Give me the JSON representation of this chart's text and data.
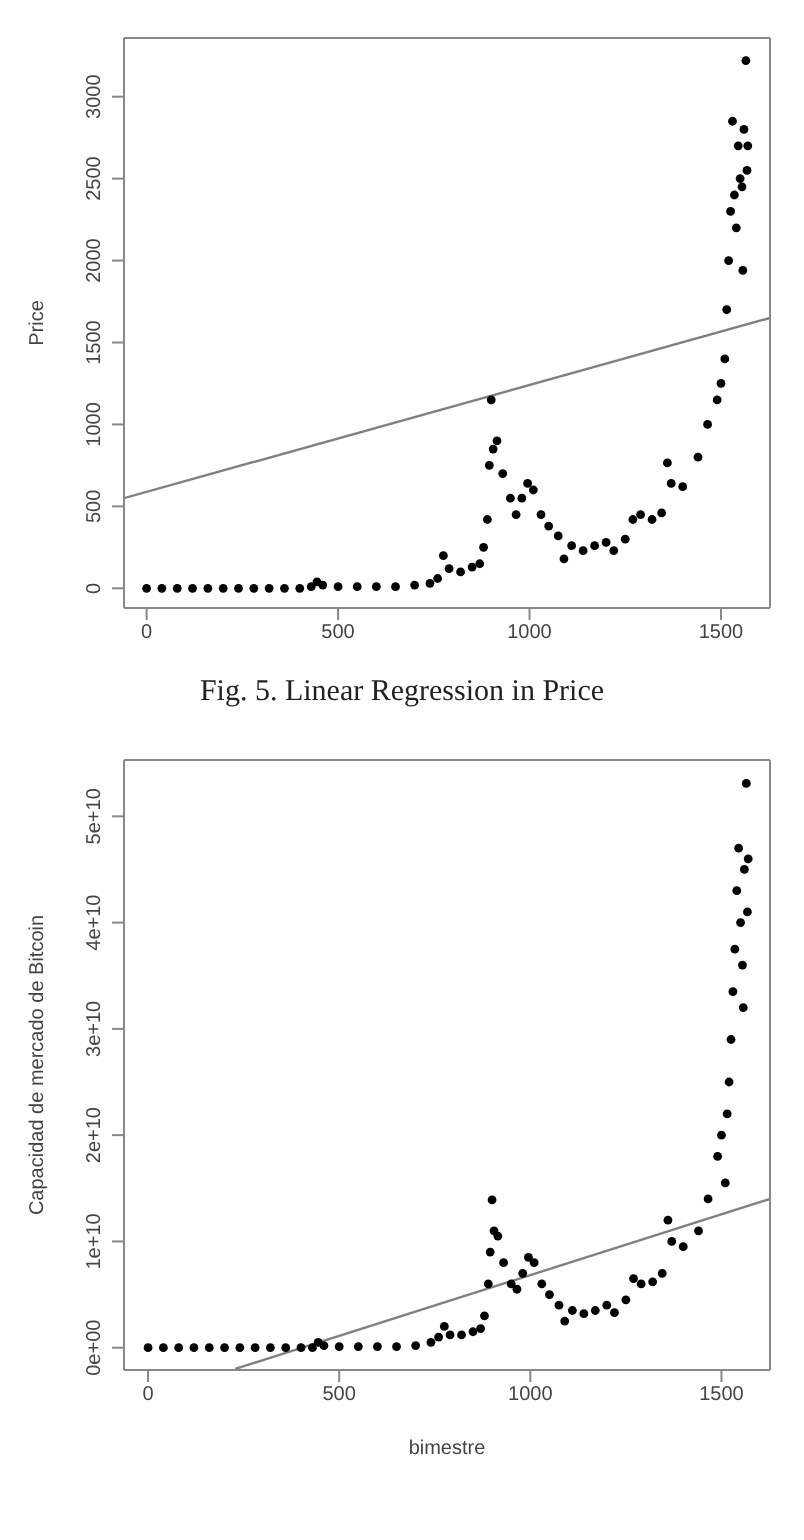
{
  "chart_data": [
    {
      "type": "scatter",
      "ylabel": "Price",
      "annotations": [
        "Fig. 5. Linear Regression in Price"
      ],
      "xlim": [
        -59,
        1628
      ],
      "xticks": [
        0,
        500,
        1000,
        1500
      ],
      "ylim": [
        -120,
        3358
      ],
      "yticks": [
        0,
        500,
        1000,
        1500,
        2000,
        2500,
        3000
      ],
      "series": [
        {
          "marker": "circle",
          "color": "#000000",
          "x": [
            0,
            40,
            80,
            120,
            160,
            200,
            240,
            280,
            320,
            360,
            400,
            430,
            445,
            460,
            500,
            550,
            600,
            650,
            700,
            740,
            760,
            775,
            790,
            820,
            850,
            870,
            880,
            890,
            895,
            900,
            905,
            915,
            930,
            950,
            965,
            980,
            995,
            1010,
            1030,
            1050,
            1075,
            1090,
            1110,
            1140,
            1170,
            1200,
            1220,
            1250,
            1270,
            1290,
            1320,
            1345,
            1360,
            1370,
            1400,
            1440,
            1465,
            1490,
            1500,
            1510,
            1515,
            1520,
            1525,
            1530,
            1535,
            1540,
            1545,
            1550,
            1555,
            1557,
            1560,
            1565,
            1568,
            1570
          ],
          "values": [
            0,
            0,
            0,
            0,
            0,
            0,
            0,
            0,
            0,
            0,
            0,
            10,
            40,
            20,
            10,
            10,
            10,
            10,
            20,
            30,
            60,
            200,
            120,
            100,
            130,
            150,
            250,
            420,
            750,
            1150,
            850,
            900,
            700,
            550,
            450,
            550,
            640,
            600,
            450,
            380,
            320,
            180,
            260,
            230,
            260,
            280,
            230,
            300,
            420,
            450,
            420,
            460,
            765,
            640,
            620,
            800,
            1000,
            1150,
            1250,
            1400,
            1700,
            2000,
            2300,
            2850,
            2400,
            2200,
            2700,
            2500,
            2450,
            1940,
            2800,
            3220,
            2550,
            2700
          ]
        },
        {
          "type": "line",
          "marker": "none",
          "color": "#808080",
          "x": [
            -59,
            1628
          ],
          "values": [
            550,
            1650
          ]
        }
      ]
    },
    {
      "type": "scatter",
      "xlabel": "bimestre",
      "ylabel": "Capacidad de mercado de Bitcoin",
      "xlim": [
        -63,
        1627
      ],
      "xticks": [
        0,
        500,
        1000,
        1500
      ],
      "ylim": [
        -2100000000.0,
        55300000000.0
      ],
      "yticks": [
        {
          "value": 0,
          "label": "0e+00"
        },
        {
          "value": 10000000000.0,
          "label": "1e+10"
        },
        {
          "value": 20000000000.0,
          "label": "2e+10"
        },
        {
          "value": 30000000000.0,
          "label": "3e+10"
        },
        {
          "value": 40000000000.0,
          "label": "4e+10"
        },
        {
          "value": 50000000000.0,
          "label": "5e+10"
        }
      ],
      "series": [
        {
          "marker": "circle",
          "color": "#000000",
          "x": [
            0,
            40,
            80,
            120,
            160,
            200,
            240,
            280,
            320,
            360,
            400,
            430,
            445,
            460,
            500,
            550,
            600,
            650,
            700,
            740,
            760,
            775,
            790,
            820,
            850,
            870,
            880,
            890,
            895,
            900,
            905,
            915,
            930,
            950,
            965,
            980,
            995,
            1010,
            1030,
            1050,
            1075,
            1090,
            1110,
            1140,
            1170,
            1200,
            1220,
            1250,
            1270,
            1290,
            1320,
            1345,
            1360,
            1370,
            1400,
            1440,
            1465,
            1490,
            1500,
            1510,
            1515,
            1520,
            1525,
            1530,
            1535,
            1540,
            1545,
            1550,
            1555,
            1557,
            1560,
            1565,
            1568,
            1570
          ],
          "values": [
            0,
            0,
            0,
            0,
            0,
            0,
            0,
            0,
            0,
            0,
            0,
            0,
            500000000.0,
            200000000.0,
            100000000.0,
            100000000.0,
            100000000.0,
            100000000.0,
            200000000.0,
            500000000.0,
            1000000000.0,
            2000000000.0,
            1200000000.0,
            1200000000.0,
            1500000000.0,
            1800000000.0,
            3000000000.0,
            6000000000.0,
            9000000000.0,
            13900000000.0,
            11000000000.0,
            10500000000.0,
            8000000000.0,
            6000000000.0,
            5500000000.0,
            7000000000.0,
            8500000000.0,
            8000000000.0,
            6000000000.0,
            5000000000.0,
            4000000000.0,
            2500000000.0,
            3500000000.0,
            3200000000.0,
            3500000000.0,
            4000000000.0,
            3300000000.0,
            4500000000.0,
            6500000000.0,
            6000000000.0,
            6200000000.0,
            7000000000.0,
            12000000000.0,
            10000000000.0,
            9500000000.0,
            11000000000.0,
            14000000000.0,
            18000000000.0,
            20000000000.0,
            15500000000.0,
            22000000000.0,
            25000000000.0,
            29000000000.0,
            33500000000.0,
            37500000000.0,
            43000000000.0,
            47000000000.0,
            40000000000.0,
            36000000000.0,
            32000000000.0,
            45000000000.0,
            53100000000.0,
            41000000000.0,
            46000000000.0
          ]
        },
        {
          "type": "line",
          "marker": "none",
          "color": "#808080",
          "x": [
            228,
            1627
          ],
          "values": [
            -2000000000.0,
            14000000000.0
          ]
        }
      ]
    }
  ]
}
